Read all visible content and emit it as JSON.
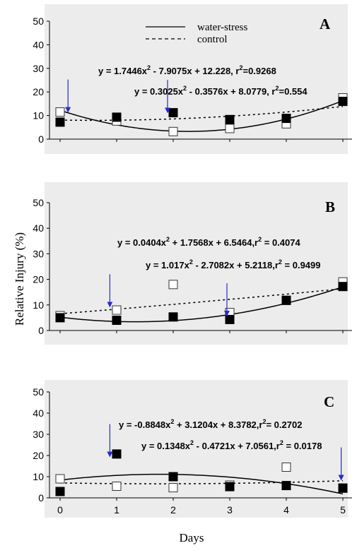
{
  "chart_data": {
    "type": "scatter",
    "ylabel": "Relative Injury (%)",
    "xlabel": "Days",
    "x_ticks": [
      "0",
      "1",
      "2",
      "3",
      "4",
      "5"
    ],
    "y_ticks": [
      "0",
      "10",
      "20",
      "30",
      "40",
      "50"
    ],
    "xlim": [
      0,
      5
    ],
    "ylim": [
      0,
      50
    ],
    "legend": {
      "placement": "top-center of panel A",
      "entries": [
        {
          "label": "water-stress",
          "line_style": "solid"
        },
        {
          "label": "control",
          "line_style": "dashed"
        }
      ]
    },
    "panels": [
      {
        "letter": "A",
        "series": [
          {
            "key": "water_stress",
            "marker": "filled-square",
            "line": "solid",
            "x": [
              0,
              1,
              2,
              3,
              4,
              5
            ],
            "y": [
              7.2,
              9.3,
              11.2,
              8.3,
              8.8,
              16.0
            ],
            "fit_coefficients": [
              1.7446,
              -7.9075,
              12.228
            ]
          },
          {
            "key": "control",
            "marker": "open-square",
            "line": "dashed",
            "x": [
              0,
              1,
              2,
              3,
              4,
              5
            ],
            "y": [
              11.5,
              7.7,
              3.2,
              4.5,
              6.5,
              17.5
            ],
            "fit_coefficients": [
              0.3025,
              -0.3576,
              8.0779
            ]
          }
        ],
        "equations": [
          {
            "base": "y = 1.7446x",
            "rest": " - 7.9075x + 12.228, r",
            "sup": "2",
            "tail": "=0.9268"
          },
          {
            "base": "y = 0.3025x",
            "rest": " - 0.3576x + 8.0779, r",
            "sup": "2",
            "tail": "=0.554"
          }
        ],
        "arrows": [
          {
            "x": 0.14,
            "y": 11.5
          },
          {
            "x": 1.9,
            "y": 11.3
          }
        ]
      },
      {
        "letter": "B",
        "series": [
          {
            "key": "water_stress",
            "marker": "filled-square",
            "line": "solid",
            "x": [
              0,
              1,
              2,
              3,
              4,
              5
            ],
            "y": [
              5.0,
              4.0,
              5.3,
              4.3,
              11.8,
              17.2
            ],
            "fit_coefficients": [
              1.017,
              -2.7082,
              5.2118
            ]
          },
          {
            "key": "control",
            "marker": "open-square",
            "line": "dashed",
            "x": [
              0,
              1,
              2,
              3,
              4,
              5
            ],
            "y": [
              5.8,
              8.0,
              18.0,
              7.0,
              11.8,
              19.0
            ],
            "fit_coefficients": [
              0.0404,
              1.7568,
              6.5464
            ]
          }
        ],
        "equations": [
          {
            "base": "y = 0.0404x",
            "rest": " + 1.7568x + 6.5464,r",
            "sup": "2",
            "tail": " = 0.4074"
          },
          {
            "base": "y = 1.017x",
            "rest": " - 2.7082x + 5.2118,r",
            "sup": "2",
            "tail": " = 0.9499"
          }
        ],
        "arrows": [
          {
            "x": 0.88,
            "y": 9.3
          },
          {
            "x": 2.95,
            "y": 5.8
          }
        ]
      },
      {
        "letter": "C",
        "series": [
          {
            "key": "water_stress",
            "marker": "filled-square",
            "line": "solid",
            "x": [
              0,
              1,
              2,
              3,
              4,
              5
            ],
            "y": [
              3.0,
              20.7,
              10.0,
              5.3,
              5.8,
              4.6
            ],
            "fit_coefficients": [
              -0.8848,
              3.1204,
              8.3782
            ]
          },
          {
            "key": "control",
            "marker": "open-square",
            "line": "dashed",
            "x": [
              0,
              1,
              2,
              3,
              4,
              5
            ],
            "y": [
              9.0,
              5.5,
              4.8,
              6.0,
              14.5,
              4.6
            ],
            "fit_coefficients": [
              0.1348,
              -0.4721,
              7.0561
            ]
          }
        ],
        "equations": [
          {
            "base": "y = -0.8848x",
            "rest": " + 3.1204x + 8.3782,r",
            "sup": "2",
            "tail": "= 0.2702"
          },
          {
            "base": "y = 0.1348x",
            "rest": " - 0.4721x + 7.0561,r",
            "sup": "2",
            "tail": " = 0.0178"
          }
        ],
        "arrows": [
          {
            "x": 0.88,
            "y": 19.5
          },
          {
            "x": 4.97,
            "y": 8.5
          }
        ]
      }
    ],
    "colors": {
      "panel_background": "#ececec",
      "arrow": "#2a2ad0",
      "marker": "#000000"
    },
    "grid": false
  }
}
